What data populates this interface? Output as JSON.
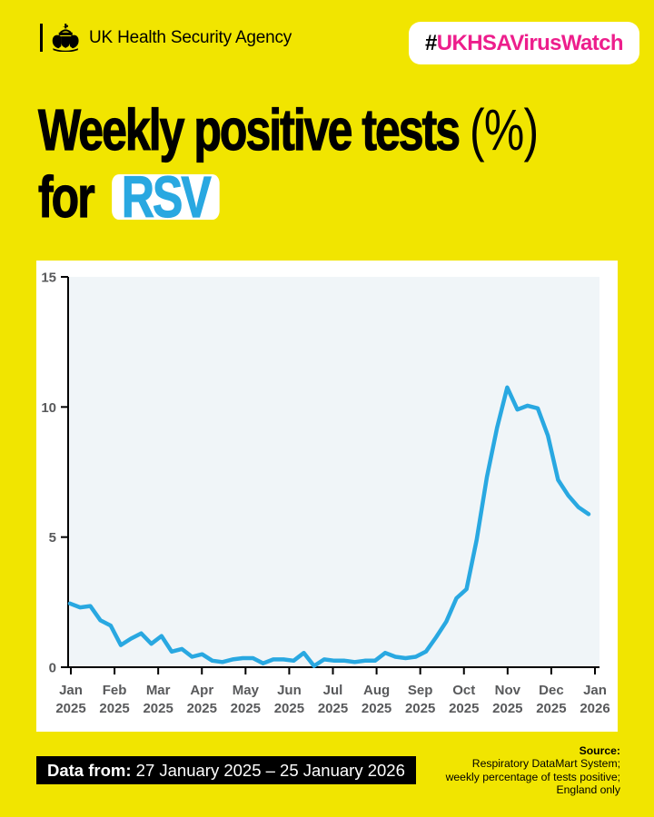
{
  "header": {
    "org_name": "UK Health Security Agency",
    "hashtag_prefix": "#",
    "hashtag_text": "UKHSAVirusWatch"
  },
  "title": {
    "line1_main": "Weekly positive tests",
    "line1_suffix": "(%)",
    "line2_prefix": "for",
    "virus_label": "RSV"
  },
  "chart_data": {
    "type": "line",
    "title": "Weekly positive tests (%) for RSV",
    "xlabel": "",
    "ylabel": "",
    "ylim": [
      0,
      15
    ],
    "yticks": [
      0,
      5,
      10,
      15
    ],
    "grid": false,
    "legend_position": "none",
    "cadence": "weekly",
    "period_start": "27 January 2025",
    "period_end": "25 January 2026",
    "x_tick_labels": [
      [
        "Jan",
        "2025"
      ],
      [
        "Feb",
        "2025"
      ],
      [
        "Mar",
        "2025"
      ],
      [
        "Apr",
        "2025"
      ],
      [
        "May",
        "2025"
      ],
      [
        "Jun",
        "2025"
      ],
      [
        "Jul",
        "2025"
      ],
      [
        "Aug",
        "2025"
      ],
      [
        "Sep",
        "2025"
      ],
      [
        "Oct",
        "2025"
      ],
      [
        "Nov",
        "2025"
      ],
      [
        "Dec",
        "2025"
      ],
      [
        "Jan",
        "2026"
      ]
    ],
    "series": [
      {
        "name": "RSV weekly percentage of tests positive",
        "values": [
          2.45,
          2.3,
          2.35,
          1.8,
          1.6,
          0.85,
          1.1,
          1.3,
          0.9,
          1.2,
          0.6,
          0.7,
          0.4,
          0.5,
          0.25,
          0.2,
          0.3,
          0.35,
          0.35,
          0.15,
          0.3,
          0.3,
          0.25,
          0.55,
          0.05,
          0.3,
          0.25,
          0.25,
          0.2,
          0.25,
          0.25,
          0.55,
          0.4,
          0.35,
          0.4,
          0.6,
          1.15,
          1.75,
          2.65,
          3.0,
          4.9,
          7.3,
          9.2,
          10.75,
          9.9,
          10.05,
          9.95,
          8.9,
          7.2,
          6.6,
          6.15,
          5.88
        ]
      }
    ]
  },
  "footer": {
    "data_from_label": "Data from:",
    "data_from_value": "27 January 2025 – 25 January 2026",
    "source_label": "Source:",
    "source_lines": [
      "Respiratory DataMart System;",
      "weekly percentage of tests positive;",
      "England only"
    ]
  },
  "colors": {
    "background_yellow": "#F1E500",
    "hashtag_magenta": "#ED1E8C",
    "line_blue": "#29A8E1",
    "plot_background": "#F0F5F8",
    "axis_black": "#000000",
    "tick_label_gray": "#58595B",
    "card_white": "#FFFFFF"
  }
}
